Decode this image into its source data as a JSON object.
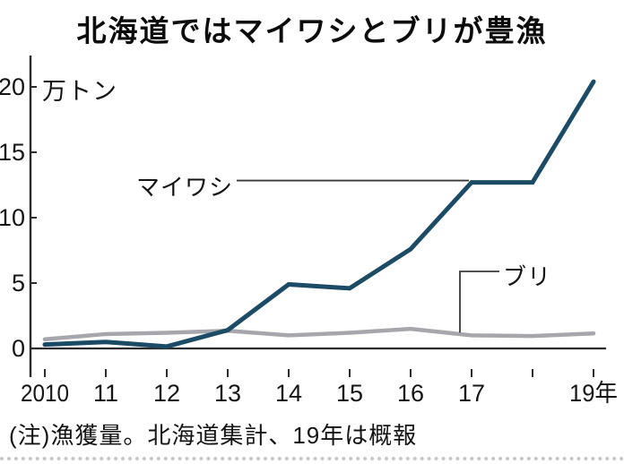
{
  "chart_data": {
    "type": "line",
    "title": "北海道ではマイワシとブリが豊漁",
    "unit": "万トン",
    "note": "(注)漁獲量。北海道集計、19年は概報",
    "x": [
      2010,
      2011,
      2012,
      2013,
      2014,
      2015,
      2016,
      2017,
      2018,
      2019
    ],
    "xtick_labels": [
      "2010",
      "11",
      "12",
      "13",
      "14",
      "15",
      "16",
      "17",
      "",
      "19年"
    ],
    "yticks": [
      0,
      5,
      10,
      15,
      20
    ],
    "ytick_labels": [
      "0",
      "5",
      "10",
      "15",
      "20"
    ],
    "ylim": [
      0,
      22
    ],
    "grid": false,
    "legend_position": "inline-annotations",
    "series": [
      {
        "name": "maiwashi",
        "label": "マイワシ",
        "color": "#1c4b66",
        "values": [
          0.3,
          0.5,
          0.15,
          1.4,
          4.9,
          4.6,
          7.6,
          12.7,
          12.7,
          20.4
        ]
      },
      {
        "name": "buri",
        "label": "ブリ",
        "color": "#a7a6ac",
        "values": [
          0.7,
          1.1,
          1.2,
          1.35,
          1.0,
          1.2,
          1.5,
          1.0,
          0.95,
          1.15
        ]
      }
    ],
    "colors": {
      "axis": "#2b2b2b",
      "leader": "#3a3a3a",
      "text": "#141414",
      "background": "#ffffff"
    }
  }
}
